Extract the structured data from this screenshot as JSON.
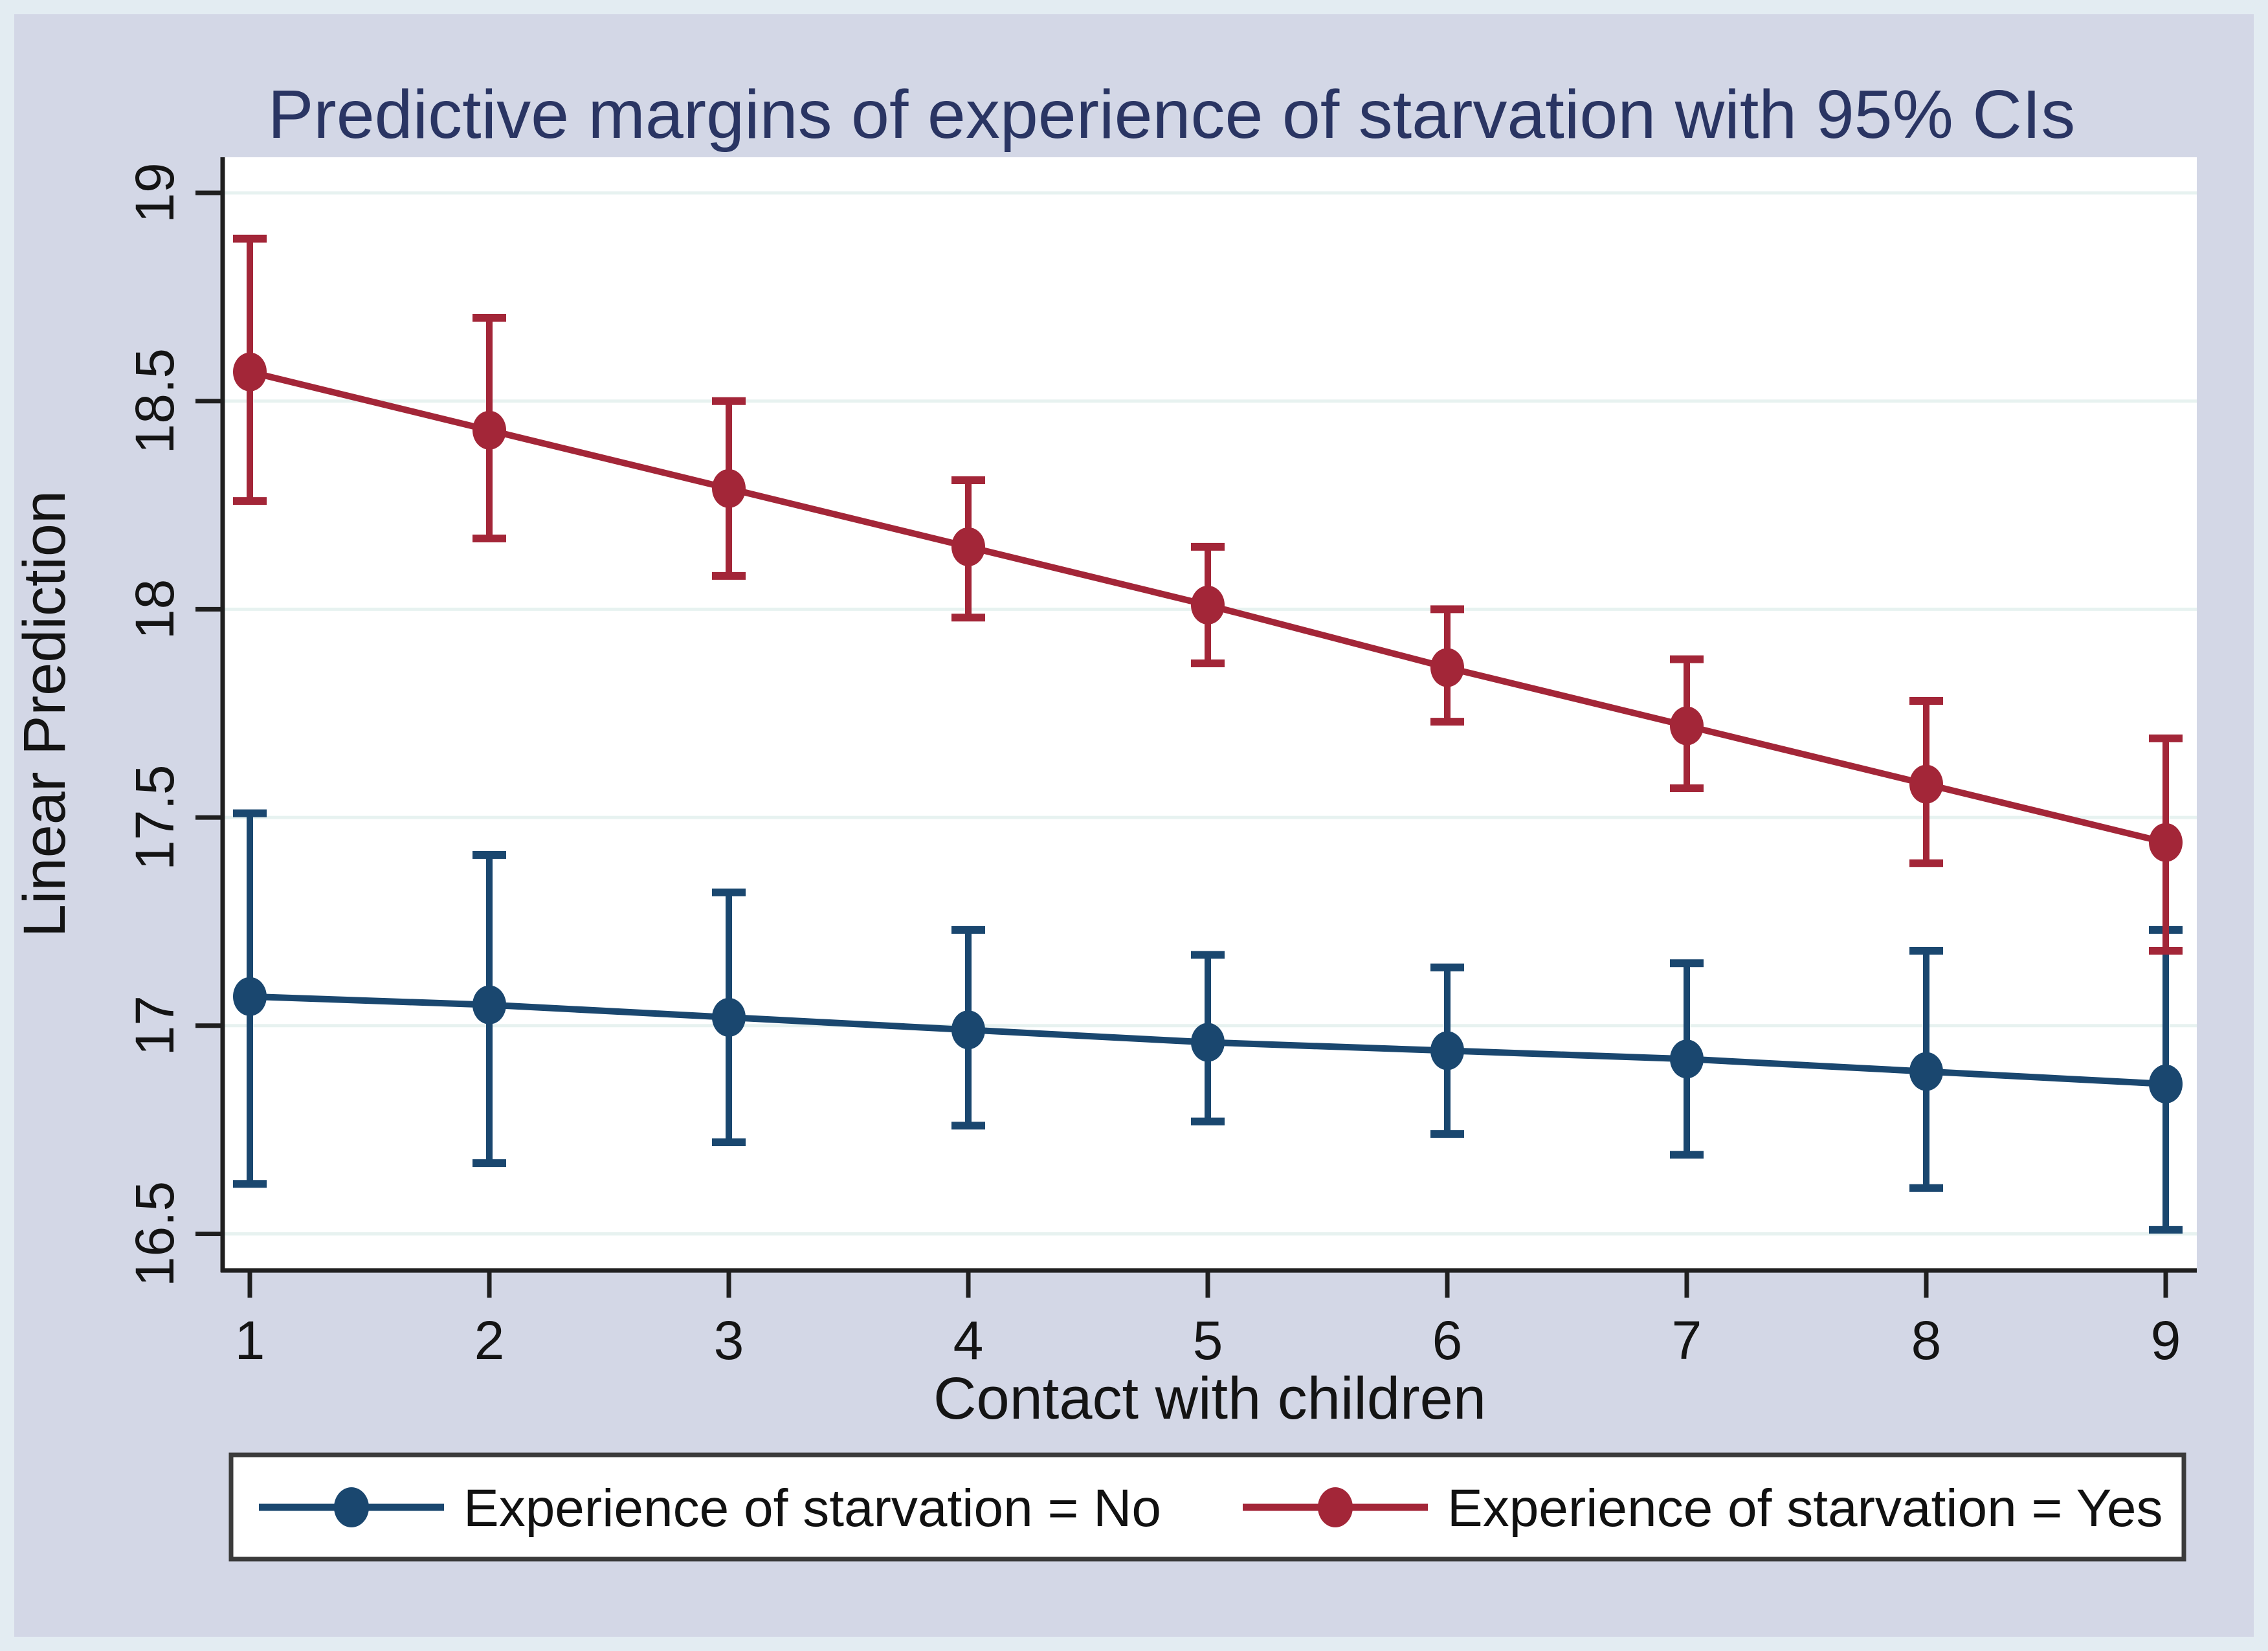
{
  "title": {
    "text": "Predictive margins of experience of starvation with 95% CIs",
    "color": "#2a3563"
  },
  "colors": {
    "frame": "#e3ecf2",
    "canvas": "#d3d7e6",
    "plot_bg": "#ffffff",
    "gridline": "#e7f2f0",
    "axis": "#1f1f1f",
    "tick_text": "#141414",
    "legend_border": "#3b3b3b",
    "legend_bg": "#ffffff",
    "series_no": "#1a476f",
    "series_yes": "#a32638"
  },
  "y_axis": {
    "label": "Linear Prediction",
    "ticks": [
      {
        "value": 19,
        "label": "19"
      },
      {
        "value": 18.5,
        "label": "18.5"
      },
      {
        "value": 18,
        "label": "18"
      },
      {
        "value": 17.5,
        "label": "17.5"
      },
      {
        "value": 17,
        "label": "17"
      },
      {
        "value": 16.5,
        "label": "16.5"
      }
    ]
  },
  "x_axis": {
    "label": "Contact with children",
    "ticks": [
      {
        "value": 1,
        "label": "1"
      },
      {
        "value": 2,
        "label": "2"
      },
      {
        "value": 3,
        "label": "3"
      },
      {
        "value": 4,
        "label": "4"
      },
      {
        "value": 5,
        "label": "5"
      },
      {
        "value": 6,
        "label": "6"
      },
      {
        "value": 7,
        "label": "7"
      },
      {
        "value": 8,
        "label": "8"
      },
      {
        "value": 9,
        "label": "9"
      }
    ]
  },
  "legend": {
    "entries": [
      {
        "label": "Experience of starvation = No",
        "color": "#1a476f"
      },
      {
        "label": "Experience of starvation = Yes",
        "color": "#a32638"
      }
    ]
  },
  "chart_data": {
    "type": "line",
    "title": "Predictive margins of experience of starvation with 95% CIs",
    "xlabel": "Contact with children",
    "ylabel": "Linear Prediction",
    "x": [
      1,
      2,
      3,
      4,
      5,
      6,
      7,
      8,
      9
    ],
    "xlim": [
      0.89,
      9.13
    ],
    "ylim": [
      16.41,
      19.09
    ],
    "grid": "horizontal",
    "legend_position": "bottom",
    "error_bars": "95% CI",
    "series": [
      {
        "name": "Experience of starvation = No",
        "color": "#1a476f",
        "values": [
          17.07,
          17.05,
          17.02,
          16.99,
          16.96,
          16.94,
          16.92,
          16.89,
          16.86
        ],
        "ci_low": [
          16.62,
          16.67,
          16.72,
          16.76,
          16.77,
          16.74,
          16.69,
          16.61,
          16.51
        ],
        "ci_high": [
          17.51,
          17.41,
          17.32,
          17.23,
          17.17,
          17.14,
          17.15,
          17.18,
          17.23
        ]
      },
      {
        "name": "Experience of starvation = Yes",
        "color": "#a32638",
        "values": [
          18.57,
          18.43,
          18.29,
          18.15,
          18.01,
          17.86,
          17.72,
          17.58,
          17.44
        ],
        "ci_low": [
          18.26,
          18.17,
          18.08,
          17.98,
          17.87,
          17.73,
          17.57,
          17.39,
          17.18
        ],
        "ci_high": [
          18.89,
          18.7,
          18.5,
          18.31,
          18.15,
          18.0,
          17.88,
          17.78,
          17.69
        ]
      }
    ]
  }
}
